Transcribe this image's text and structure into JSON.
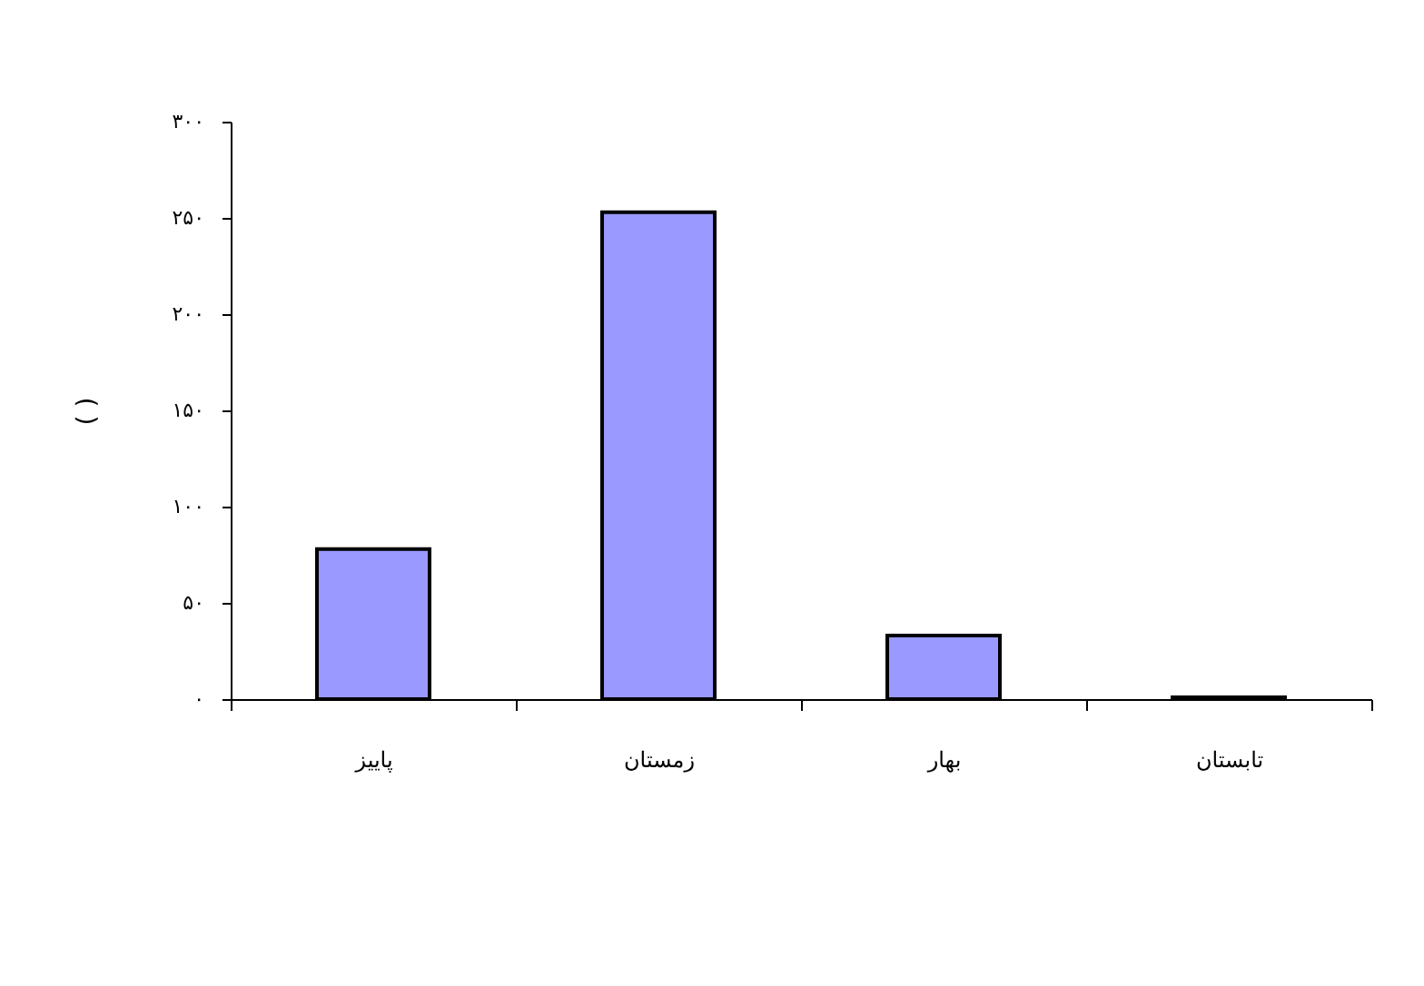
{
  "chart_data": {
    "type": "bar",
    "ylabel": "( )",
    "categories": [
      "پاییز",
      "زمستان",
      "بهار",
      "تابستان"
    ],
    "values": [
      78,
      253,
      33,
      1
    ],
    "color": "#9999ff",
    "ylim": [
      0,
      300
    ],
    "yticks": [
      {
        "value": 0,
        "label": "۰"
      },
      {
        "value": 50,
        "label": "۵۰"
      },
      {
        "value": 100,
        "label": "۱۰۰"
      },
      {
        "value": 150,
        "label": "۱۵۰"
      },
      {
        "value": 200,
        "label": "۲۰۰"
      },
      {
        "value": 250,
        "label": "۲۵۰"
      },
      {
        "value": 300,
        "label": "۳۰۰"
      }
    ],
    "grid": false
  }
}
